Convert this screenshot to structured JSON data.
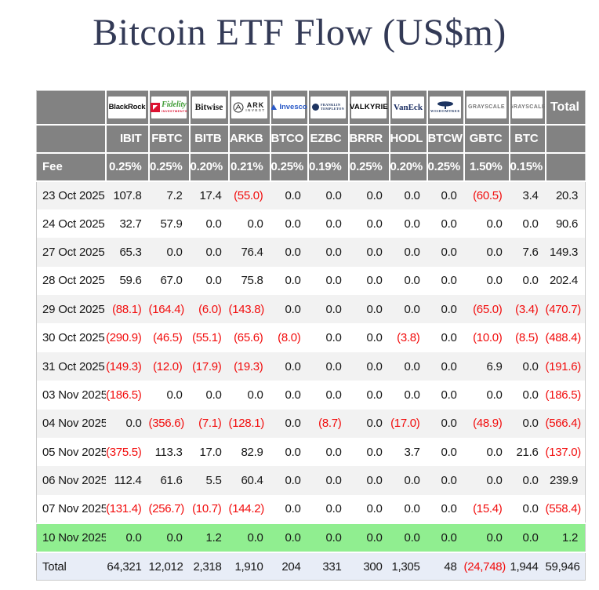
{
  "title": "Bitcoin ETF Flow (US$m)",
  "colors": {
    "header_bg": "#828282",
    "stripe_row": "#f2f2f2",
    "green_highlight_row": "#90ee90",
    "total_row_bg": "#e8edf7",
    "negative_value": "#f20d0d",
    "title_text": "#333a56"
  },
  "chart_data": {
    "type": "table",
    "title": "Bitcoin ETF Flow (US$m)",
    "fee_label": "Fee",
    "total_header": "Total",
    "negative_format": "parentheses shown in red",
    "providers": [
      {
        "style": "blackrock",
        "logo_text": "BlackRock",
        "ticker": "IBIT",
        "fee": "0.25%"
      },
      {
        "style": "fidelity",
        "logo_text": "Fidelity",
        "logo_sub": "INVESTMENTS",
        "ticker": "FBTC",
        "fee": "0.25%"
      },
      {
        "style": "bitwise",
        "logo_text": "Bitwise",
        "ticker": "BITB",
        "fee": "0.20%"
      },
      {
        "style": "ark",
        "logo_text": "ARK",
        "logo_sub": "INVEST",
        "ticker": "ARKB",
        "fee": "0.21%"
      },
      {
        "style": "invesco",
        "logo_text": "Invesco",
        "ticker": "BTCO",
        "fee": "0.25%"
      },
      {
        "style": "franklin",
        "logo_text": "FRANKLIN",
        "logo_sub": "TEMPLETON",
        "ticker": "EZBC",
        "fee": "0.19%"
      },
      {
        "style": "valkyrie",
        "logo_text": "VALKYRIE",
        "ticker": "BRRR",
        "fee": "0.25%"
      },
      {
        "style": "vaneck",
        "logo_text": "VanEck",
        "ticker": "HODL",
        "fee": "0.20%"
      },
      {
        "style": "wisdomtree",
        "logo_text": "WISDOMTREE",
        "ticker": "BTCW",
        "fee": "0.25%"
      },
      {
        "style": "grayscale",
        "logo_text": "GRAYSCALE",
        "ticker": "GBTC",
        "fee": "1.50%"
      },
      {
        "style": "grayscale",
        "logo_text": "GRAYSCALE",
        "ticker": "BTC",
        "fee": "0.15%"
      }
    ],
    "rows": [
      {
        "date": "23 Oct 2025",
        "values": [
          "107.8",
          "7.2",
          "17.4",
          "(55.0)",
          "0.0",
          "0.0",
          "0.0",
          "0.0",
          "0.0",
          "(60.5)",
          "3.4",
          "20.3"
        ]
      },
      {
        "date": "24 Oct 2025",
        "values": [
          "32.7",
          "57.9",
          "0.0",
          "0.0",
          "0.0",
          "0.0",
          "0.0",
          "0.0",
          "0.0",
          "0.0",
          "0.0",
          "90.6"
        ]
      },
      {
        "date": "27 Oct 2025",
        "values": [
          "65.3",
          "0.0",
          "0.0",
          "76.4",
          "0.0",
          "0.0",
          "0.0",
          "0.0",
          "0.0",
          "0.0",
          "7.6",
          "149.3"
        ]
      },
      {
        "date": "28 Oct 2025",
        "values": [
          "59.6",
          "67.0",
          "0.0",
          "75.8",
          "0.0",
          "0.0",
          "0.0",
          "0.0",
          "0.0",
          "0.0",
          "0.0",
          "202.4"
        ]
      },
      {
        "date": "29 Oct 2025",
        "values": [
          "(88.1)",
          "(164.4)",
          "(6.0)",
          "(143.8)",
          "0.0",
          "0.0",
          "0.0",
          "0.0",
          "0.0",
          "(65.0)",
          "(3.4)",
          "(470.7)"
        ]
      },
      {
        "date": "30 Oct 2025",
        "values": [
          "(290.9)",
          "(46.5)",
          "(55.1)",
          "(65.6)",
          "(8.0)",
          "0.0",
          "0.0",
          "(3.8)",
          "0.0",
          "(10.0)",
          "(8.5)",
          "(488.4)"
        ]
      },
      {
        "date": "31 Oct 2025",
        "values": [
          "(149.3)",
          "(12.0)",
          "(17.9)",
          "(19.3)",
          "0.0",
          "0.0",
          "0.0",
          "0.0",
          "0.0",
          "6.9",
          "0.0",
          "(191.6)"
        ]
      },
      {
        "date": "03 Nov 2025",
        "values": [
          "(186.5)",
          "0.0",
          "0.0",
          "0.0",
          "0.0",
          "0.0",
          "0.0",
          "0.0",
          "0.0",
          "0.0",
          "0.0",
          "(186.5)"
        ]
      },
      {
        "date": "04 Nov 2025",
        "values": [
          "0.0",
          "(356.6)",
          "(7.1)",
          "(128.1)",
          "0.0",
          "(8.7)",
          "0.0",
          "(17.0)",
          "0.0",
          "(48.9)",
          "0.0",
          "(566.4)"
        ]
      },
      {
        "date": "05 Nov 2025",
        "values": [
          "(375.5)",
          "113.3",
          "17.0",
          "82.9",
          "0.0",
          "0.0",
          "0.0",
          "3.7",
          "0.0",
          "0.0",
          "21.6",
          "(137.0)"
        ]
      },
      {
        "date": "06 Nov 2025",
        "values": [
          "112.4",
          "61.6",
          "5.5",
          "60.4",
          "0.0",
          "0.0",
          "0.0",
          "0.0",
          "0.0",
          "0.0",
          "0.0",
          "239.9"
        ]
      },
      {
        "date": "07 Nov 2025",
        "values": [
          "(131.4)",
          "(256.7)",
          "(10.7)",
          "(144.2)",
          "0.0",
          "0.0",
          "0.0",
          "0.0",
          "0.0",
          "(15.4)",
          "0.0",
          "(558.4)"
        ]
      },
      {
        "date": "10 Nov 2025",
        "values": [
          "0.0",
          "0.0",
          "1.2",
          "0.0",
          "0.0",
          "0.0",
          "0.0",
          "0.0",
          "0.0",
          "0.0",
          "0.0",
          "1.2"
        ],
        "highlight": "green"
      }
    ],
    "total_row": {
      "label": "Total",
      "values": [
        "64,321",
        "12,012",
        "2,318",
        "1,910",
        "204",
        "331",
        "300",
        "1,305",
        "48",
        "(24,748)",
        "1,944",
        "59,946"
      ]
    }
  }
}
